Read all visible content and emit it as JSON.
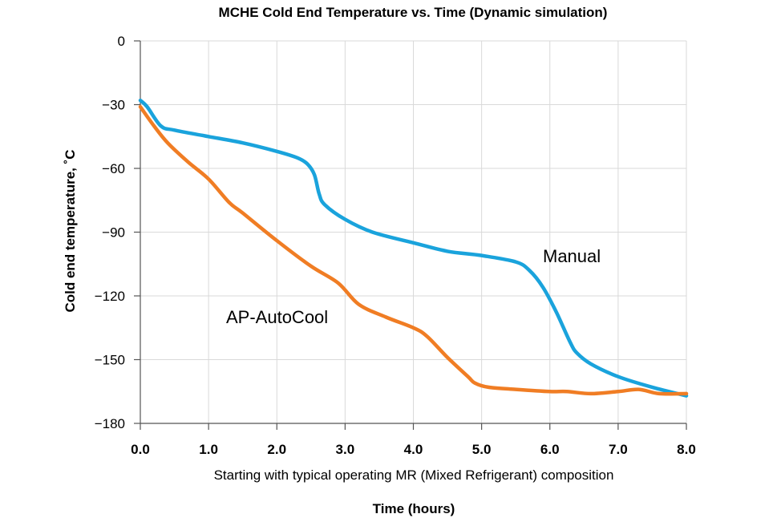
{
  "chart_data": {
    "type": "line",
    "title": "MCHE Cold End Temperature vs. Time (Dynamic simulation)",
    "xlabel": "Time (hours)",
    "ylabel": "Cold end temperature, ˚C",
    "subtitle": "Starting with typical operating MR (Mixed Refrigerant) composition",
    "xlim": [
      0,
      8
    ],
    "ylim": [
      -180,
      0
    ],
    "xticks": [
      0,
      1,
      2,
      3,
      4,
      5,
      6,
      7,
      8
    ],
    "xtick_labels": [
      "0.0",
      "1.0",
      "2.0",
      "3.0",
      "4.0",
      "5.0",
      "6.0",
      "7.0",
      "8.0"
    ],
    "yticks": [
      0,
      -30,
      -60,
      -90,
      -120,
      -150,
      -180
    ],
    "ytick_labels": [
      "0",
      "−30",
      "−60",
      "−90",
      "−120",
      "−150",
      "−180"
    ],
    "grid": true,
    "series": [
      {
        "name": "Manual",
        "color": "#1aa3dc",
        "x": [
          0,
          0.1,
          0.3,
          0.5,
          1.0,
          1.5,
          2.0,
          2.3,
          2.45,
          2.55,
          2.62,
          2.7,
          3.0,
          3.4,
          4.0,
          4.5,
          5.0,
          5.5,
          5.7,
          5.9,
          6.1,
          6.3,
          6.4,
          6.6,
          7.0,
          7.5,
          8.0
        ],
        "y": [
          -28,
          -31,
          -40,
          -42,
          -45,
          -48,
          -52,
          -55,
          -58,
          -63,
          -72,
          -77,
          -84,
          -90,
          -95,
          -99,
          -101,
          -104,
          -108,
          -116,
          -128,
          -142,
          -147,
          -152,
          -158,
          -163,
          -167
        ]
      },
      {
        "name": "AP-AutoCool",
        "color": "#f07d24",
        "x": [
          0,
          0.2,
          0.4,
          0.7,
          1.0,
          1.3,
          1.5,
          2.0,
          2.5,
          2.9,
          3.2,
          3.6,
          4.0,
          4.2,
          4.5,
          4.8,
          4.9,
          5.1,
          5.5,
          6.0,
          6.25,
          6.6,
          7.0,
          7.3,
          7.6,
          8.0
        ],
        "y": [
          -31,
          -40,
          -48,
          -57,
          -65,
          -76,
          -81,
          -94,
          -106,
          -114,
          -124,
          -130,
          -135,
          -139,
          -149,
          -158,
          -161,
          -163,
          -164,
          -165,
          -165,
          -166,
          -165,
          -164,
          -166,
          -166
        ]
      }
    ]
  }
}
